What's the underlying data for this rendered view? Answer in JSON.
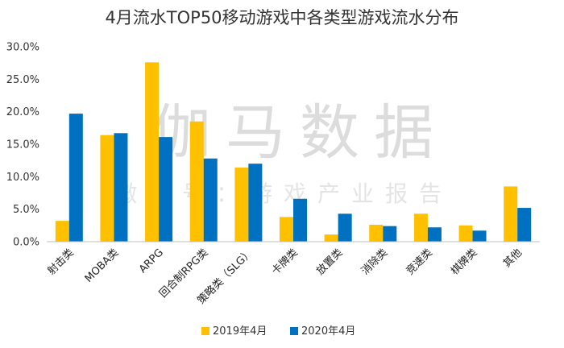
{
  "chart_data": {
    "type": "bar",
    "title": "4月流水TOP50移动游戏中各类型游戏流水分布",
    "categories": [
      "射击类",
      "MOBA类",
      "ARPG",
      "回合制RPG类",
      "策略类（SLG）",
      "卡牌类",
      "放置类",
      "消除类",
      "竞速类",
      "棋牌类",
      "其他"
    ],
    "series": [
      {
        "name": "2019年4月",
        "color": "#FFC000",
        "values": [
          3.2,
          16.4,
          27.6,
          18.5,
          11.4,
          3.8,
          1.1,
          2.6,
          4.3,
          2.5,
          8.5
        ]
      },
      {
        "name": "2020年4月",
        "color": "#0070C0",
        "values": [
          19.7,
          16.7,
          16.1,
          12.8,
          12.0,
          6.6,
          4.3,
          2.4,
          2.2,
          1.7,
          5.2
        ]
      }
    ],
    "ylim": [
      0,
      30
    ],
    "yticks": [
      "0.0%",
      "5.0%",
      "10.0%",
      "15.0%",
      "20.0%",
      "25.0%",
      "30.0%"
    ],
    "grid": false,
    "legend": "bottom-center",
    "watermark": {
      "main": "伽马数据",
      "sub": "微信号：游戏产业报告"
    }
  }
}
